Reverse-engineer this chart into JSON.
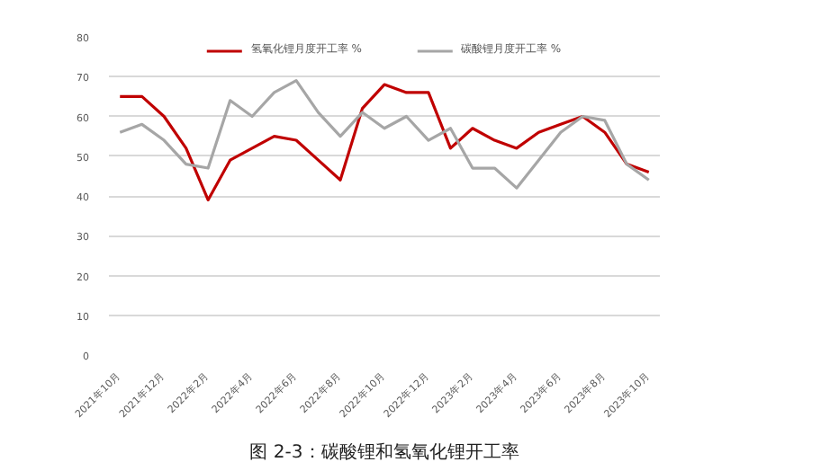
{
  "chart_data": {
    "type": "line",
    "title": "图 2-3：碳酸锂和氢氧化锂开工率",
    "categories": [
      "2021年10月",
      null,
      "2021年12月",
      null,
      "2022年2月",
      null,
      "2022年4月",
      null,
      "2022年6月",
      null,
      "2022年8月",
      null,
      "2022年10月",
      null,
      "2022年12月",
      null,
      "2023年2月",
      null,
      "2023年4月",
      null,
      "2023年6月",
      null,
      "2023年8月",
      null,
      "2023年10月"
    ],
    "series": [
      {
        "name": "氢氧化锂月度开工率 %",
        "color": "#c00000",
        "values": [
          65,
          65,
          60,
          52,
          39,
          49,
          52,
          55,
          54,
          49,
          44,
          62,
          68,
          66,
          66,
          52,
          57,
          54,
          52,
          56,
          58,
          60,
          56,
          48,
          46
        ]
      },
      {
        "name": "碳酸锂月度开工率 %",
        "color": "#a6a6a6",
        "values": [
          56,
          58,
          54,
          48,
          47,
          64,
          60,
          66,
          69,
          61,
          55,
          61,
          57,
          60,
          54,
          57,
          47,
          47,
          42,
          49,
          56,
          60,
          59,
          48,
          44
        ]
      }
    ],
    "ylim": [
      0,
      80
    ],
    "yticks": [
      0,
      10,
      20,
      30,
      40,
      50,
      60,
      70,
      80
    ],
    "grid": "y",
    "legend": "top",
    "marker": "none",
    "line_style": "solid"
  }
}
